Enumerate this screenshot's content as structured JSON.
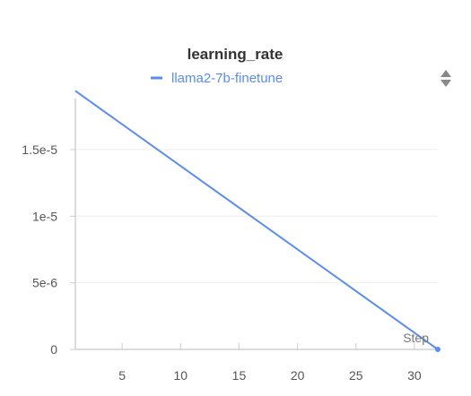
{
  "chart_data": {
    "type": "line",
    "title": "learning_rate",
    "xlabel": "Step",
    "ylabel": "",
    "xlim": [
      1,
      32
    ],
    "ylim": [
      0,
      1.95e-05
    ],
    "x_ticks": [
      5,
      10,
      15,
      20,
      25,
      30
    ],
    "y_ticks": [
      {
        "value": 0,
        "label": "0"
      },
      {
        "value": 5e-06,
        "label": "5e-6"
      },
      {
        "value": 1e-05,
        "label": "1e-5"
      },
      {
        "value": 1.5e-05,
        "label": "1.5e-5"
      }
    ],
    "grid": true,
    "legend_placement": "top-center",
    "series": [
      {
        "name": "llama2-7b-finetune",
        "color": "#5b8def",
        "x": [
          1,
          32
        ],
        "y": [
          1.94e-05,
          0
        ]
      }
    ],
    "end_marker": {
      "x": 32,
      "y": 0
    }
  },
  "icons": {
    "panel_control": "sort-arrows-icon"
  }
}
